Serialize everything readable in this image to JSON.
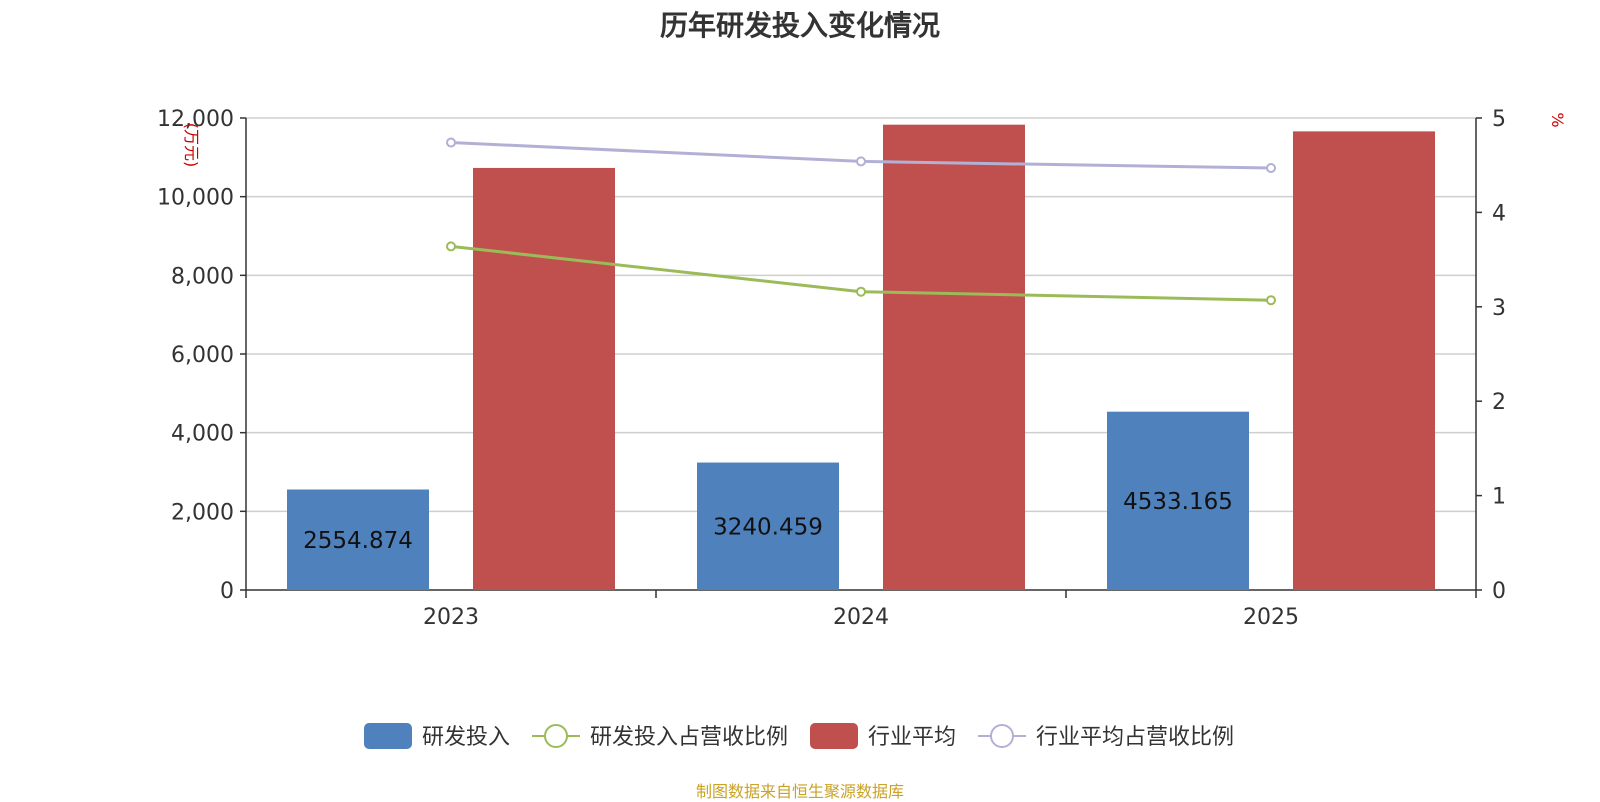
{
  "chart_data": {
    "type": "bar",
    "title": "历年研发投入变化情况",
    "categories": [
      "2023",
      "2024",
      "2025"
    ],
    "y_left": {
      "unit_label": "(万元)",
      "ylim": [
        0,
        12000
      ],
      "ticks": [
        0,
        2000,
        4000,
        6000,
        8000,
        10000,
        12000
      ],
      "tick_labels": [
        "0",
        "2,000",
        "4,000",
        "6,000",
        "8,000",
        "10,000",
        "12,000"
      ]
    },
    "y_right": {
      "unit_label": "%",
      "ylim": [
        0,
        5
      ],
      "ticks": [
        0,
        1,
        2,
        3,
        4,
        5
      ],
      "tick_labels": [
        "0",
        "1",
        "2",
        "3",
        "4",
        "5"
      ]
    },
    "series": [
      {
        "name": "研发投入",
        "kind": "bar",
        "axis": "left",
        "color": "#4f81bd",
        "values": [
          2554.874,
          3240.459,
          4533.165
        ],
        "data_labels": [
          "2554.874",
          "3240.459",
          "4533.165"
        ]
      },
      {
        "name": "行业平均",
        "kind": "bar",
        "axis": "left",
        "color": "#c0504d",
        "values": [
          10730,
          11830,
          11660
        ]
      },
      {
        "name": "研发投入占营收比例",
        "kind": "line",
        "axis": "right",
        "color": "#9bbb59",
        "values": [
          3.64,
          3.16,
          3.07
        ]
      },
      {
        "name": "行业平均占营收比例",
        "kind": "line",
        "axis": "right",
        "color": "#b3b0d6",
        "values": [
          4.74,
          4.54,
          4.47
        ]
      }
    ],
    "legend_order": [
      "研发投入",
      "研发投入占营收比例",
      "行业平均",
      "行业平均占营收比例"
    ],
    "legend_position": "bottom",
    "grid": true,
    "source": "制图数据来自恒生聚源数据库"
  }
}
